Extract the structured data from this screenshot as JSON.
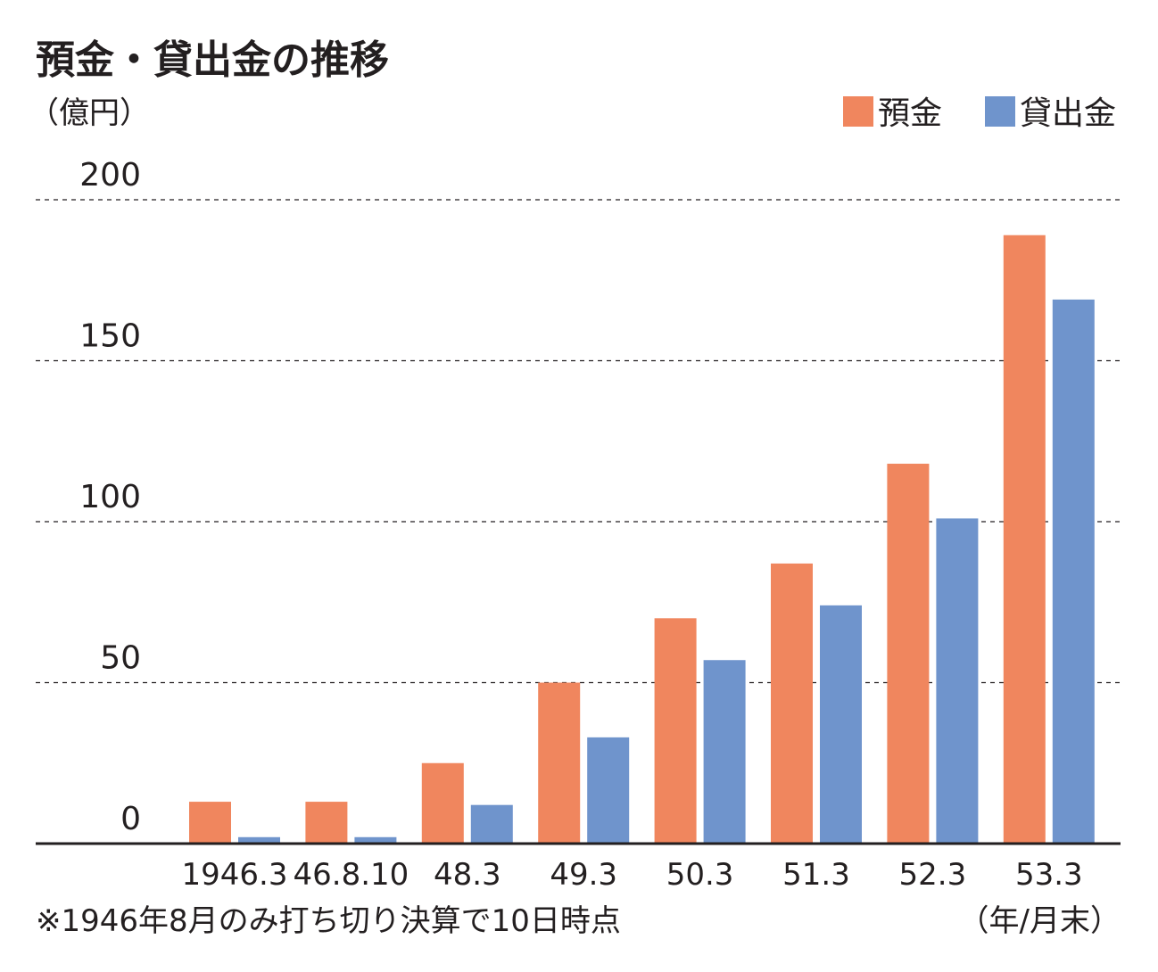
{
  "colors": {
    "deposits": "#f0865e",
    "loans": "#6f94cc"
  },
  "chart_data": {
    "type": "bar",
    "title": "預金・貸出金の推移",
    "ylabel": "（億円）",
    "xlabel": "（年/月末）",
    "note": "※1946年8月のみ打ち切り決算で10日時点",
    "ylim": [
      0,
      200
    ],
    "yticks": [
      "200",
      "150",
      "100",
      "50",
      "0"
    ],
    "grid": true,
    "legend_position": "top-right",
    "categories": [
      "1946.3",
      "46.8.10",
      "48.3",
      "49.3",
      "50.3",
      "51.3",
      "52.3",
      "53.3"
    ],
    "series": [
      {
        "name": "預金",
        "color": "#f0865e",
        "values": [
          13,
          13,
          25,
          50,
          70,
          87,
          118,
          189
        ]
      },
      {
        "name": "貸出金",
        "color": "#6f94cc",
        "values": [
          2,
          2,
          12,
          33,
          57,
          74,
          101,
          169
        ]
      }
    ]
  }
}
